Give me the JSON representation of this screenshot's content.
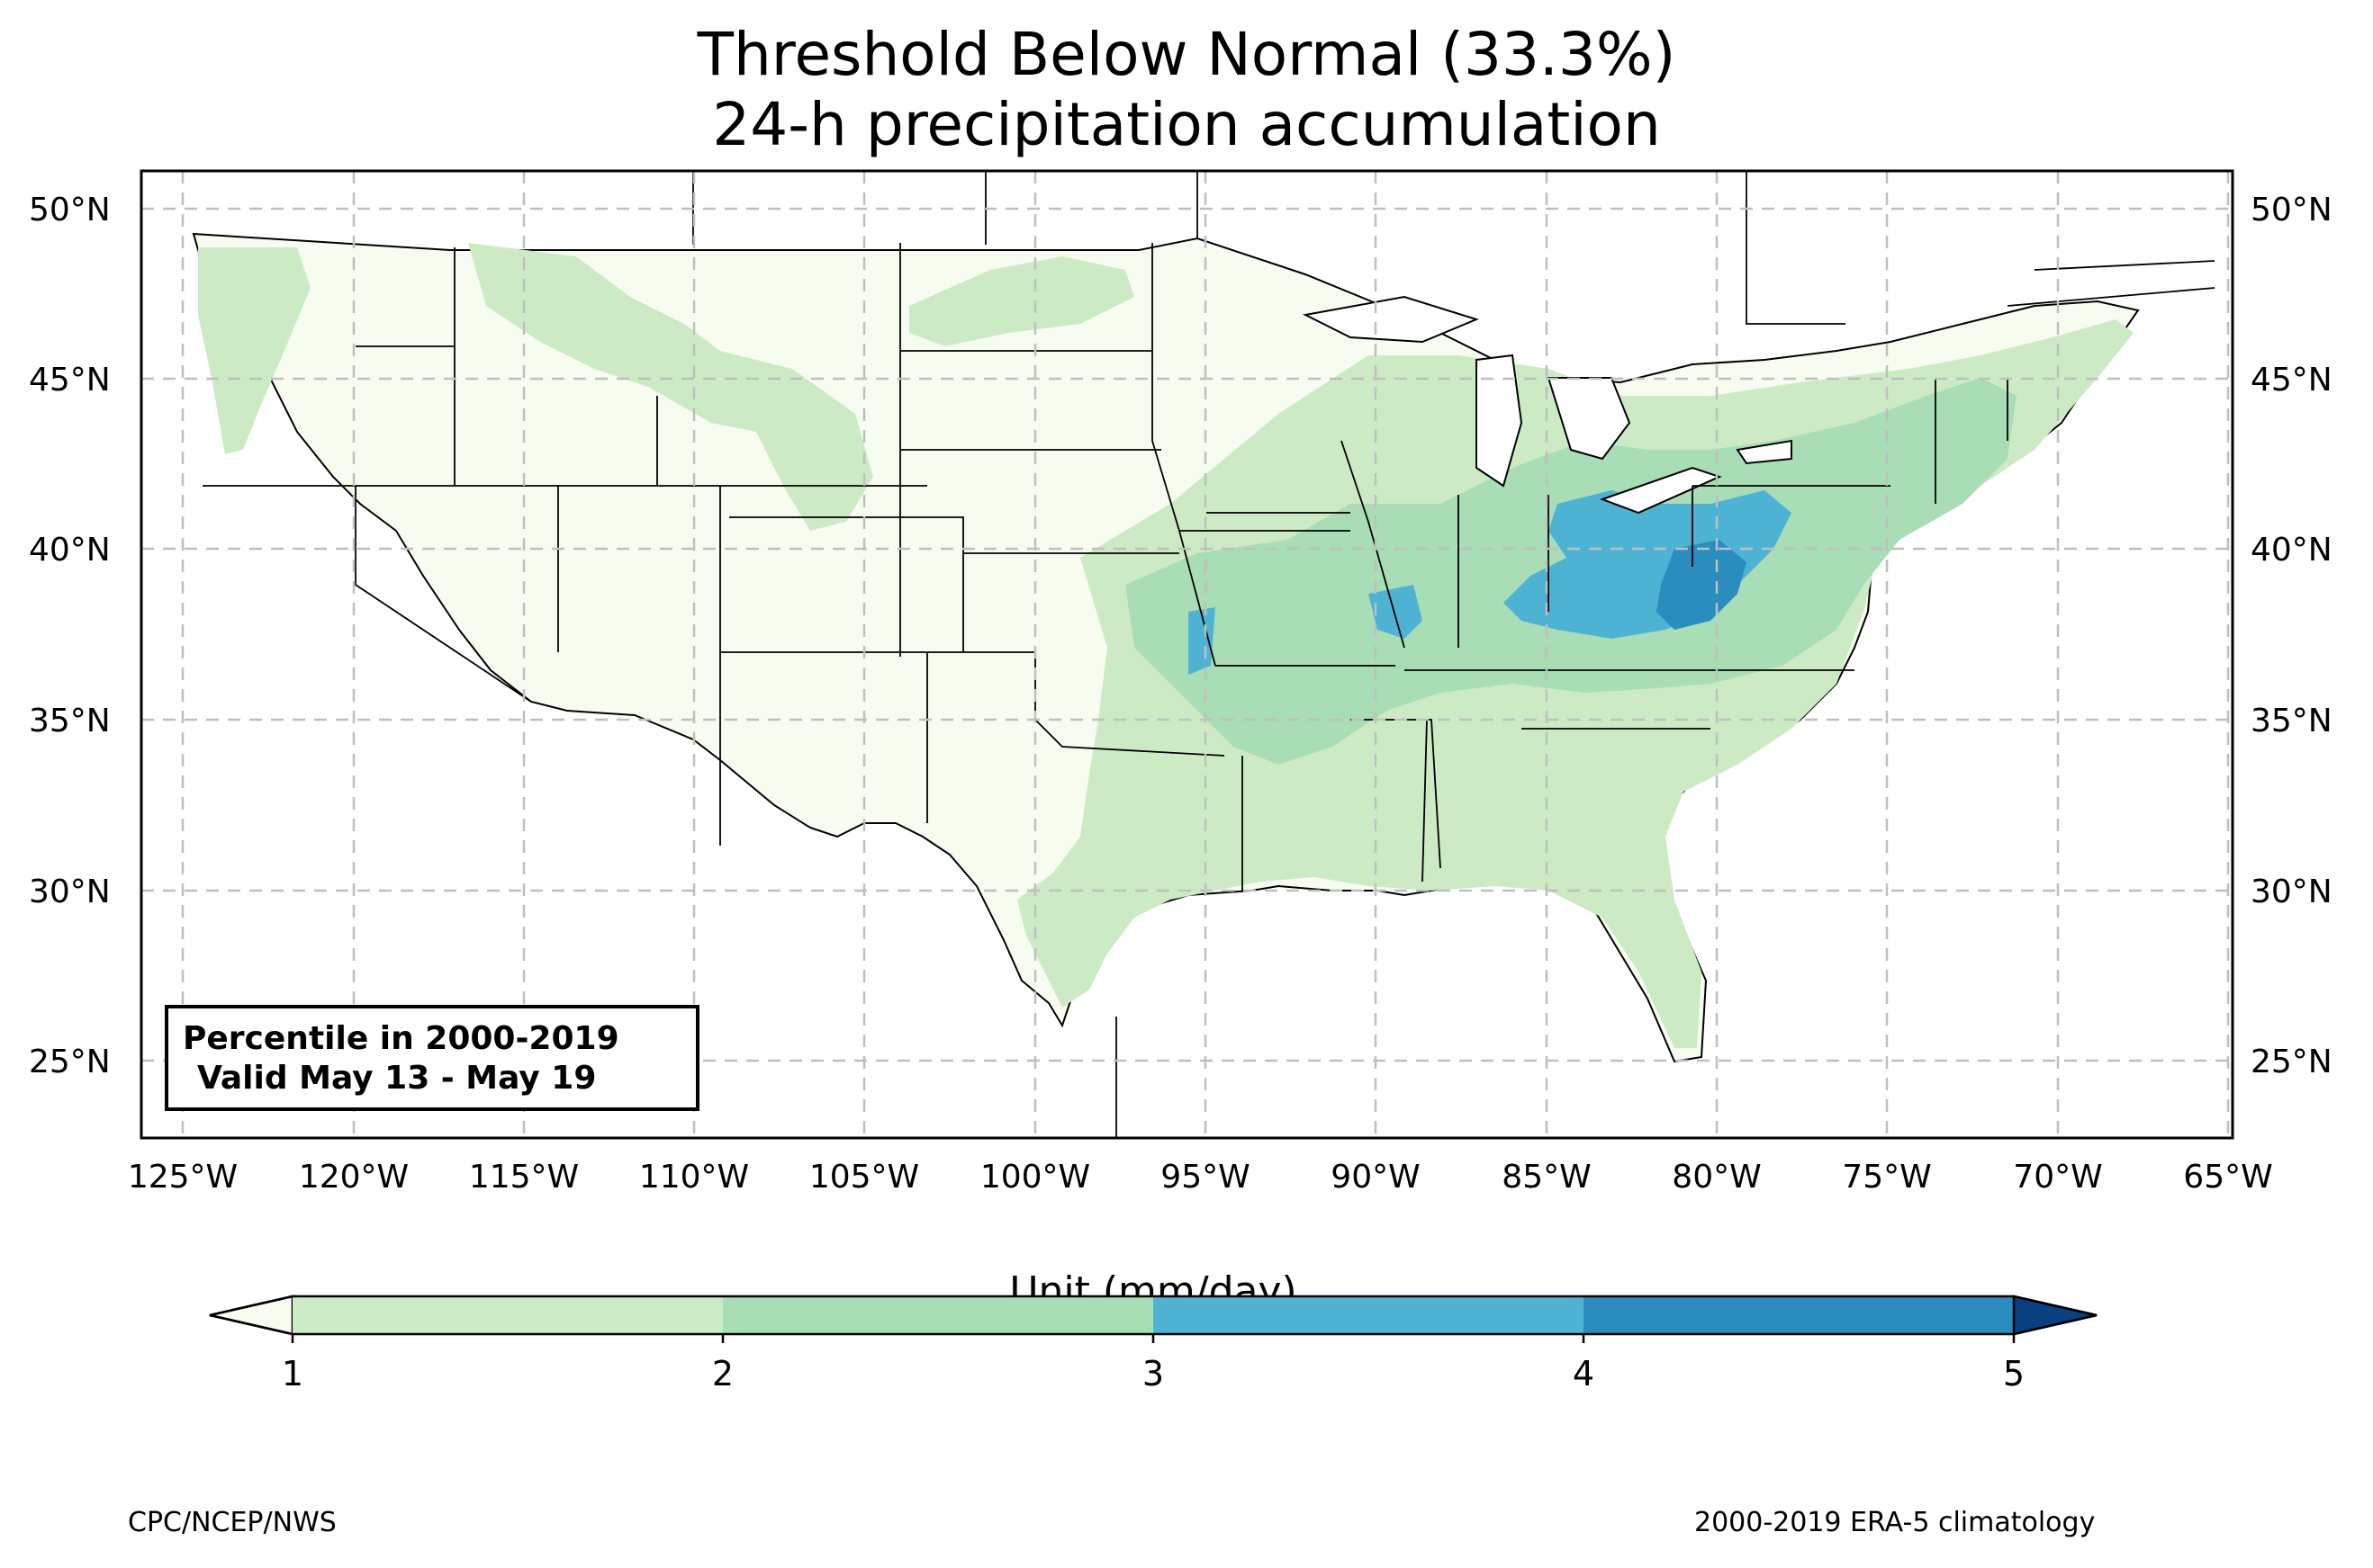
{
  "title": {
    "line1": "Threshold Below Normal (33.3%)",
    "line2": "24-h precipitation accumulation"
  },
  "map": {
    "lat_labels": [
      "50°N",
      "45°N",
      "40°N",
      "35°N",
      "30°N",
      "25°N"
    ],
    "lon_labels": [
      "125°W",
      "120°W",
      "115°W",
      "110°W",
      "105°W",
      "100°W",
      "95°W",
      "90°W",
      "85°W",
      "80°W",
      "75°W",
      "70°W",
      "65°W"
    ],
    "grid": "dashed",
    "info_box": {
      "line1": "Percentile in 2000-2019",
      "line2": "Valid May 13 - May 19"
    }
  },
  "colorbar": {
    "label": "Unit (mm/day)",
    "ticks": [
      "1",
      "2",
      "3",
      "4",
      "5"
    ],
    "colors": {
      "under": "#f7fcf0",
      "b1_2": "#ccebc5",
      "b2_3": "#a8ddb5",
      "b3_4": "#4eb3d3",
      "b4_5": "#2b8cbe",
      "over": "#084081"
    }
  },
  "footer": {
    "left": "CPC/NCEP/NWS",
    "right": "2000-2019 ERA-5 climatology"
  }
}
